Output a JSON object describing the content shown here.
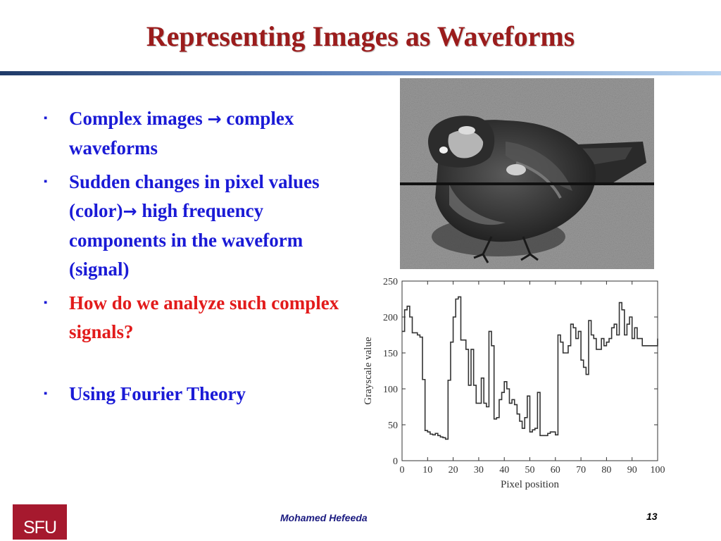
{
  "slide": {
    "title": "Representing Images as Waveforms",
    "bullets": [
      {
        "before": "Complex images ",
        "arrow": "→",
        "after": " complex waveforms",
        "color": "#1a1ad6"
      },
      {
        "before": "Sudden changes in pixel values (color)",
        "arrow": "→",
        "after": " high frequency components in the waveform (signal)",
        "color": "#1a1ad6"
      },
      {
        "text": "How do we analyze such complex  signals?",
        "color": "#e21b1b"
      },
      {
        "text": "Using Fourier Theory",
        "color": "#1a1ad6"
      }
    ],
    "bullet_marker": "▪"
  },
  "footer": {
    "logo_text": "SFU",
    "author": "Mohamed  Hefeeda",
    "page_number": "13"
  },
  "chart_data": {
    "type": "line",
    "xlabel": "Pixel position",
    "ylabel": "Grayscale value",
    "xlim": [
      0,
      100
    ],
    "ylim": [
      0,
      250
    ],
    "xticks": [
      0,
      10,
      20,
      30,
      40,
      50,
      60,
      70,
      80,
      90,
      100
    ],
    "yticks": [
      0,
      50,
      100,
      150,
      200,
      250
    ],
    "grid": false,
    "series": [
      {
        "x": [
          0,
          1,
          2,
          3,
          4,
          5,
          6,
          7,
          8,
          9,
          10,
          11,
          12,
          13,
          14,
          15,
          16,
          17,
          18,
          19,
          20,
          21,
          22,
          23,
          24,
          25,
          26,
          27,
          28,
          29,
          30,
          31,
          32,
          33,
          34,
          35,
          36,
          37,
          38,
          39,
          40,
          41,
          42,
          43,
          44,
          45,
          46,
          47,
          48,
          49,
          50,
          51,
          52,
          53,
          54,
          55,
          56,
          57,
          58,
          59,
          60,
          61,
          62,
          63,
          64,
          65,
          66,
          67,
          68,
          69,
          70,
          71,
          72,
          73,
          74,
          75,
          76,
          77,
          78,
          79,
          80,
          81,
          82,
          83,
          84,
          85,
          86,
          87,
          88,
          89,
          90,
          91,
          92,
          93,
          94,
          95,
          96,
          97,
          98,
          99,
          100
        ],
        "y": [
          180,
          210,
          215,
          200,
          178,
          178,
          175,
          172,
          113,
          42,
          40,
          37,
          36,
          38,
          35,
          33,
          32,
          30,
          112,
          165,
          200,
          225,
          228,
          168,
          168,
          155,
          105,
          155,
          105,
          80,
          80,
          115,
          80,
          75,
          180,
          160,
          58,
          60,
          85,
          95,
          110,
          100,
          80,
          85,
          78,
          65,
          55,
          45,
          60,
          90,
          40,
          43,
          45,
          95,
          35,
          35,
          35,
          38,
          40,
          40,
          36,
          175,
          165,
          150,
          150,
          160,
          190,
          185,
          170,
          180,
          140,
          130,
          120,
          195,
          175,
          170,
          155,
          155,
          170,
          160,
          165,
          170,
          185,
          190,
          175,
          220,
          210,
          175,
          190,
          200,
          170,
          185,
          170,
          170,
          160,
          160,
          160,
          160,
          160,
          160,
          170
        ]
      }
    ]
  },
  "photo": {
    "description_icon": "sparrow-photo-icon"
  }
}
